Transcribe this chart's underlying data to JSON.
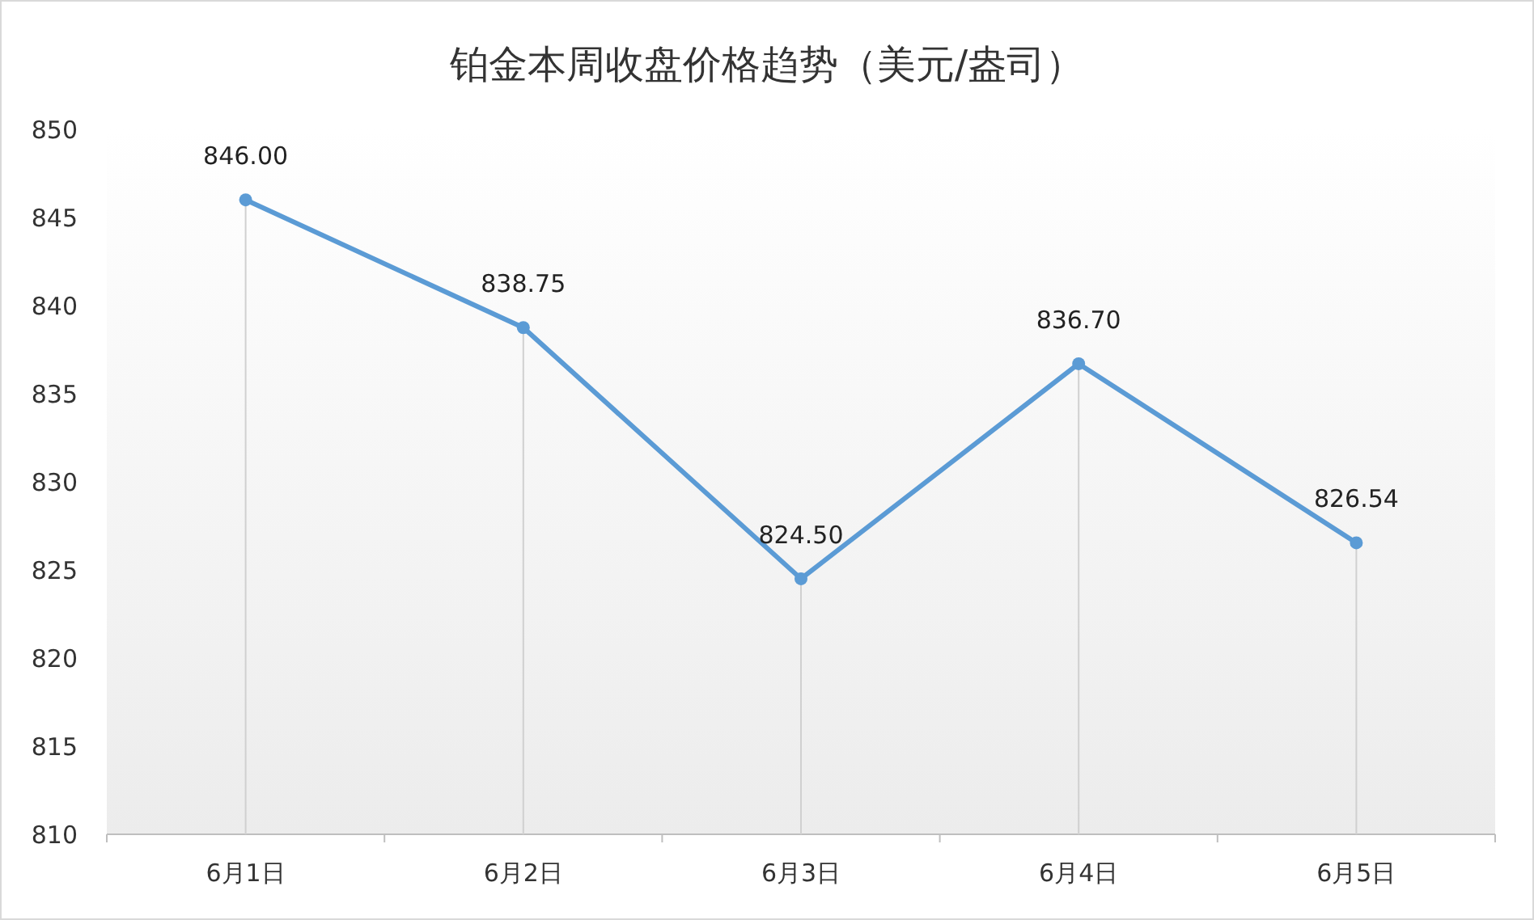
{
  "chart_data": {
    "type": "line",
    "title": "铂金本周收盘价格趋势（美元/盎司）",
    "categories": [
      "6月1日",
      "6月2日",
      "6月3日",
      "6月4日",
      "6月5日"
    ],
    "series": [
      {
        "color": "#5b9bd5",
        "values": [
          846.0,
          838.75,
          824.5,
          836.7,
          826.54
        ],
        "value_labels": [
          "846.00",
          "838.75",
          "824.50",
          "836.70",
          "826.54"
        ]
      }
    ],
    "ylim": [
      810,
      850
    ],
    "yticks": [
      810,
      815,
      820,
      825,
      830,
      835,
      840,
      845,
      850
    ],
    "grid": "x",
    "marker": "circle",
    "line_style": "solid"
  }
}
